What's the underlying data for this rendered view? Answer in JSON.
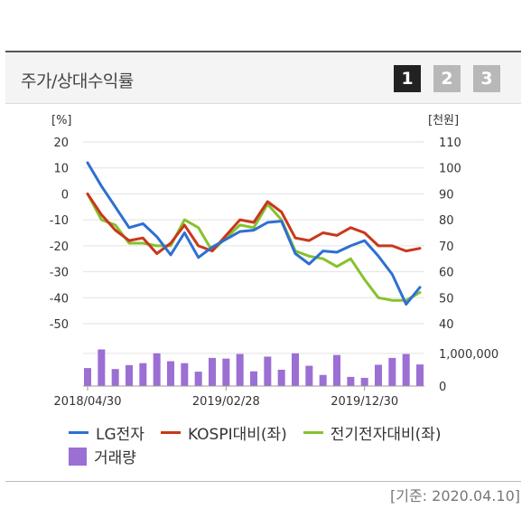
{
  "panel": {
    "title": "주가/상대수익률",
    "pages": [
      "1",
      "2",
      "3"
    ],
    "active_page": 0
  },
  "chart_data": {
    "type": "line",
    "x": [
      "2018/04",
      "2018/05",
      "2018/06",
      "2018/07",
      "2018/08",
      "2018/09",
      "2018/10",
      "2018/11",
      "2018/12",
      "2019/01",
      "2019/02",
      "2019/03",
      "2019/04",
      "2019/05",
      "2019/06",
      "2019/07",
      "2019/08",
      "2019/09",
      "2019/10",
      "2019/11",
      "2019/12",
      "2020/01",
      "2020/02",
      "2020/03",
      "2020/04"
    ],
    "x_tick_labels": [
      "2018/04/30",
      "2019/02/28",
      "2019/12/30"
    ],
    "x_tick_indices": [
      0,
      10,
      20
    ],
    "left_axis_label": "[%]",
    "right_axis_label": "[천원]",
    "left_ticks": [
      20,
      10,
      0,
      -10,
      -20,
      -30,
      -40,
      -50
    ],
    "right_ticks": [
      110,
      100,
      90,
      80,
      70,
      60,
      50,
      40
    ],
    "volume_ticks": [
      "1,000,000",
      "0"
    ],
    "ylim_left": [
      -50,
      20
    ],
    "ylim_right": [
      40,
      110
    ],
    "volume_max": 1300000,
    "series": [
      {
        "name": "LG전자",
        "axis": "right",
        "color": "#2f6fd1",
        "values": [
          102,
          93,
          85,
          77,
          78.5,
          73.5,
          66.5,
          75,
          65.5,
          69.5,
          72.5,
          75.5,
          76,
          79,
          79.5,
          67,
          63,
          68,
          67.5,
          70,
          72,
          66,
          59,
          47.5,
          54
        ]
      },
      {
        "name": "KOSPI대비(좌)",
        "axis": "left",
        "color": "#c9371c",
        "values": [
          0,
          -8,
          -14,
          -18,
          -17,
          -23,
          -19,
          -12,
          -20,
          -22,
          -16,
          -10,
          -11,
          -3,
          -7,
          -17,
          -18,
          -15,
          -16,
          -13,
          -15,
          -20,
          -20,
          -22,
          -21
        ]
      },
      {
        "name": "전기전자대비(좌)",
        "axis": "left",
        "color": "#86c22d",
        "values": [
          0,
          -10,
          -12,
          -19,
          -19,
          -20,
          -20,
          -10,
          -13,
          -22,
          -17,
          -12,
          -13,
          -4,
          -10,
          -22,
          -24,
          -25,
          -28,
          -25,
          -33,
          -40,
          -41,
          -41,
          -38
        ]
      }
    ],
    "volume": {
      "name": "거래량",
      "color": "#9b6fd3",
      "values": [
        550000,
        1120000,
        520000,
        640000,
        700000,
        1000000,
        760000,
        700000,
        440000,
        860000,
        840000,
        980000,
        450000,
        900000,
        500000,
        1000000,
        620000,
        340000,
        950000,
        280000,
        250000,
        650000,
        860000,
        980000,
        660000
      ]
    }
  },
  "legend": {
    "lg": "LG전자",
    "kospi": "KOSPI대비(좌)",
    "sector": "전기전자대비(좌)",
    "volume": "거래량"
  },
  "footnote": "[기준: 2020.04.10]"
}
